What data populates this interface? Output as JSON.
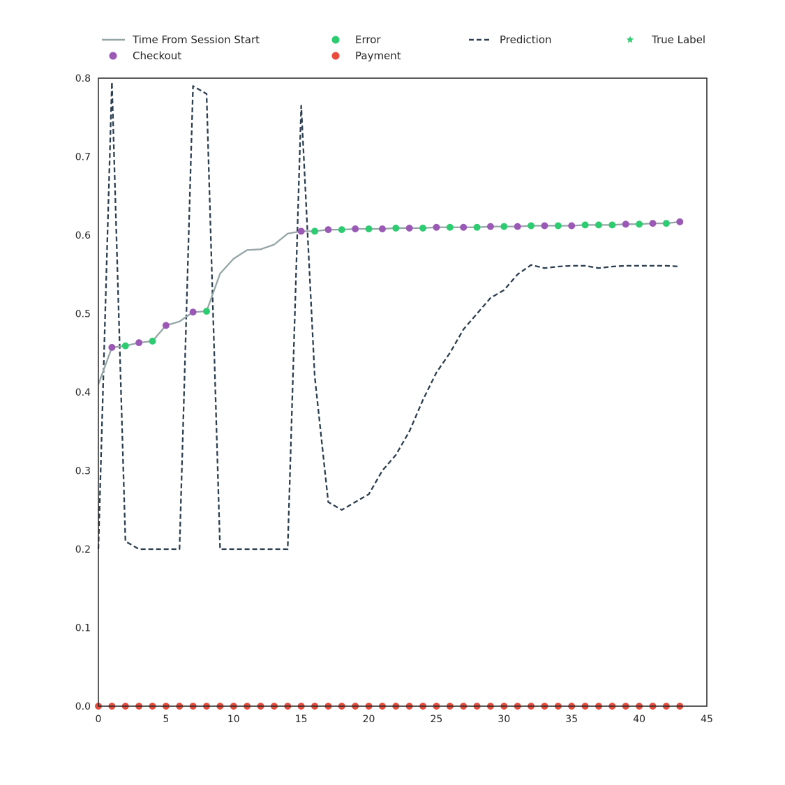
{
  "chart_data": {
    "type": "line",
    "title": "",
    "xlabel": "",
    "ylabel": "",
    "xlim": [
      0,
      45
    ],
    "ylim": [
      0.0,
      0.8
    ],
    "x_ticks": [
      0,
      5,
      10,
      15,
      20,
      25,
      30,
      35,
      40,
      45
    ],
    "y_ticks": [
      0.0,
      0.1,
      0.2,
      0.3,
      0.4,
      0.5,
      0.6,
      0.7,
      0.8
    ],
    "x_tick_labels": [
      "0",
      "5",
      "10",
      "15",
      "20",
      "25",
      "30",
      "35",
      "40",
      "45"
    ],
    "y_tick_labels": [
      "0.0",
      "0.1",
      "0.2",
      "0.3",
      "0.4",
      "0.5",
      "0.6",
      "0.7",
      "0.8"
    ],
    "grid": false,
    "legend_position": "top",
    "legend": [
      {
        "label": "Time From Session Start",
        "kind": "line",
        "color": "#95a5a6"
      },
      {
        "label": "Error",
        "kind": "dot",
        "color": "#2ecc71"
      },
      {
        "label": "Prediction",
        "kind": "dashed",
        "color": "#2c3e50"
      },
      {
        "label": "True Label",
        "kind": "star",
        "color": "#2ecc71"
      },
      {
        "label": "Checkout",
        "kind": "dot",
        "color": "#9b59b6"
      },
      {
        "label": "Payment",
        "kind": "dot",
        "color": "#e74c3c"
      }
    ],
    "series": [
      {
        "name": "Time From Session Start",
        "style": "line",
        "color": "#95a5a6",
        "x": [
          0,
          1,
          2,
          3,
          4,
          5,
          6,
          7,
          8,
          9,
          10,
          11,
          12,
          13,
          14,
          15,
          16,
          17,
          18,
          19,
          20,
          21,
          22,
          23,
          24,
          25,
          26,
          27,
          28,
          29,
          30,
          31,
          32,
          33,
          34,
          35,
          36,
          37,
          38,
          39,
          40,
          41,
          42,
          43
        ],
        "values": [
          0.41,
          0.457,
          0.459,
          0.463,
          0.465,
          0.485,
          0.49,
          0.502,
          0.503,
          0.551,
          0.57,
          0.581,
          0.582,
          0.588,
          0.602,
          0.605,
          0.605,
          0.607,
          0.607,
          0.608,
          0.608,
          0.608,
          0.609,
          0.609,
          0.609,
          0.61,
          0.61,
          0.61,
          0.61,
          0.611,
          0.611,
          0.611,
          0.612,
          0.612,
          0.612,
          0.612,
          0.613,
          0.613,
          0.613,
          0.614,
          0.614,
          0.615,
          0.615,
          0.617
        ]
      },
      {
        "name": "Prediction",
        "style": "dashed",
        "color": "#2c3e50",
        "x": [
          0,
          1,
          2,
          3,
          4,
          5,
          6,
          7,
          8,
          9,
          10,
          11,
          12,
          13,
          14,
          15,
          16,
          17,
          18,
          19,
          20,
          21,
          22,
          23,
          24,
          25,
          26,
          27,
          28,
          29,
          30,
          31,
          32,
          33,
          34,
          35,
          36,
          37,
          38,
          39,
          40,
          41,
          42,
          43
        ],
        "values": [
          0.2,
          0.795,
          0.21,
          0.2,
          0.2,
          0.2,
          0.2,
          0.79,
          0.78,
          0.2,
          0.2,
          0.2,
          0.2,
          0.2,
          0.2,
          0.765,
          0.42,
          0.26,
          0.25,
          0.26,
          0.27,
          0.3,
          0.32,
          0.35,
          0.39,
          0.425,
          0.45,
          0.48,
          0.5,
          0.52,
          0.53,
          0.55,
          0.562,
          0.558,
          0.56,
          0.561,
          0.561,
          0.558,
          0.56,
          0.561,
          0.561,
          0.561,
          0.561,
          0.56
        ]
      },
      {
        "name": "Checkout",
        "style": "markers",
        "color": "#9b59b6",
        "x": [
          1,
          3,
          5,
          7,
          15,
          17,
          19,
          21,
          23,
          25,
          27,
          29,
          31,
          33,
          35,
          39,
          41,
          43
        ],
        "values": [
          0.457,
          0.463,
          0.485,
          0.502,
          0.605,
          0.607,
          0.608,
          0.608,
          0.609,
          0.61,
          0.61,
          0.611,
          0.611,
          0.612,
          0.612,
          0.614,
          0.615,
          0.617
        ]
      },
      {
        "name": "Error",
        "style": "markers",
        "color": "#2ecc71",
        "x": [
          2,
          4,
          8,
          16,
          18,
          20,
          22,
          24,
          26,
          28,
          30,
          32,
          34,
          36,
          37,
          38,
          40,
          42
        ],
        "values": [
          0.459,
          0.465,
          0.503,
          0.605,
          0.607,
          0.608,
          0.609,
          0.609,
          0.61,
          0.61,
          0.611,
          0.612,
          0.612,
          0.613,
          0.613,
          0.613,
          0.614,
          0.615
        ]
      },
      {
        "name": "Payment",
        "style": "markers",
        "color": "#e74c3c",
        "x": [
          0,
          1,
          2,
          3,
          4,
          5,
          6,
          7,
          8,
          9,
          10,
          11,
          12,
          13,
          14,
          15,
          16,
          17,
          18,
          19,
          20,
          21,
          22,
          23,
          24,
          25,
          26,
          27,
          28,
          29,
          30,
          31,
          32,
          33,
          34,
          35,
          36,
          37,
          38,
          39,
          40,
          41,
          42,
          43
        ],
        "values": [
          0,
          0,
          0,
          0,
          0,
          0,
          0,
          0,
          0,
          0,
          0,
          0,
          0,
          0,
          0,
          0,
          0,
          0,
          0,
          0,
          0,
          0,
          0,
          0,
          0,
          0,
          0,
          0,
          0,
          0,
          0,
          0,
          0,
          0,
          0,
          0,
          0,
          0,
          0,
          0,
          0,
          0,
          0,
          0
        ]
      },
      {
        "name": "True Label",
        "style": "stars",
        "color": "#2ecc71",
        "x": [
          0,
          1,
          2,
          3,
          4,
          5,
          6,
          7,
          8,
          9,
          10,
          11,
          12,
          13,
          14,
          15,
          16,
          17,
          18,
          19,
          20,
          21,
          22,
          23,
          24,
          25,
          26,
          27,
          28,
          29,
          30,
          31,
          32,
          33,
          34,
          35,
          36,
          37,
          38,
          39,
          40,
          41,
          42,
          43
        ],
        "values": [
          0,
          0,
          0,
          0,
          0,
          0,
          0,
          0,
          0,
          0,
          0,
          0,
          0,
          0,
          0,
          0,
          0,
          0,
          0,
          0,
          0,
          0,
          0,
          0,
          0,
          0,
          0,
          0,
          0,
          0,
          0,
          0,
          0,
          0,
          0,
          0,
          0,
          0,
          0,
          0,
          0,
          0,
          0,
          0
        ]
      }
    ]
  }
}
